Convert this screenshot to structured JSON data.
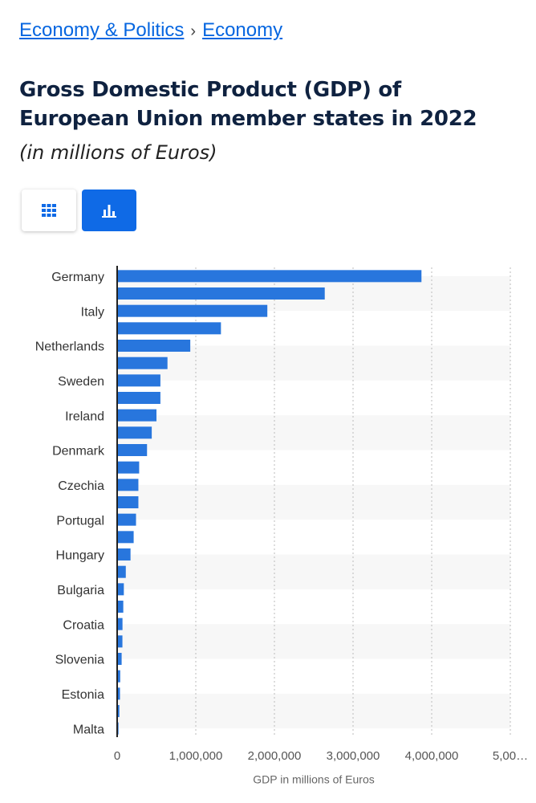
{
  "breadcrumb": {
    "items": [
      "Economy & Politics",
      "Economy"
    ],
    "separator": "›"
  },
  "chart_data": {
    "type": "bar",
    "orientation": "horizontal",
    "title": "Gross Domestic Product (GDP) of European Union member states in 2022",
    "subtitle": "(in millions of Euros)",
    "x_label": "GDP in millions of Euros",
    "categories": [
      "Germany",
      null,
      "Italy",
      null,
      "Netherlands",
      null,
      "Sweden",
      null,
      "Ireland",
      null,
      "Denmark",
      null,
      "Czechia",
      null,
      "Portugal",
      null,
      "Hungary",
      null,
      "Bulgaria",
      null,
      "Croatia",
      null,
      "Slovenia",
      null,
      "Estonia",
      null,
      "Malta"
    ],
    "values": [
      3870000,
      2640000,
      1910000,
      1320000,
      930000,
      640000,
      550000,
      550000,
      500000,
      440000,
      380000,
      280000,
      270000,
      270000,
      240000,
      210000,
      170000,
      110000,
      85000,
      78000,
      68000,
      67000,
      57000,
      39000,
      36000,
      28000,
      17000
    ],
    "color": "#2876dd",
    "xlim": [
      0,
      5000000
    ],
    "xticks": [
      0,
      {
        "value": 1000000,
        "label": "1,000,000"
      },
      {
        "value": 2000000,
        "label": "2,000,000"
      },
      {
        "value": 3000000,
        "label": "3,000,000"
      },
      {
        "value": 4000000,
        "label": "4,000,000"
      },
      {
        "value": 5000000,
        "label": "5,00…"
      }
    ],
    "grid": true
  }
}
